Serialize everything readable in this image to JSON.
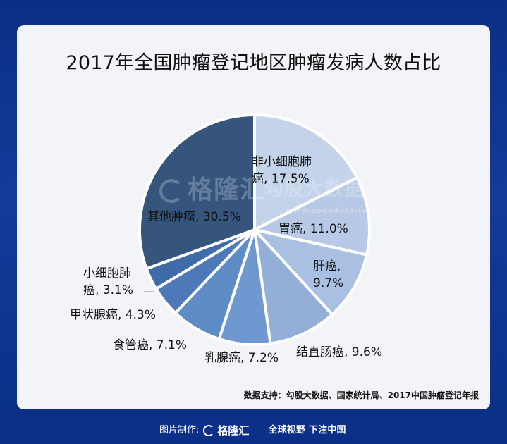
{
  "chart_data": {
    "type": "pie",
    "title": "2017年全国肿瘤登记地区肿瘤发病人数占比",
    "slices": [
      {
        "label_lines": [
          "非小细胞肺",
          "癌, 17.5%"
        ],
        "category": "非小细胞肺癌",
        "value": 17.5,
        "color": "#c3d3ea"
      },
      {
        "label_lines": [
          "胃癌, 11.0%"
        ],
        "category": "胃癌",
        "value": 11.0,
        "color": "#b7c9e6"
      },
      {
        "label_lines": [
          "肝癌,",
          "9.7%"
        ],
        "category": "肝癌",
        "value": 9.7,
        "color": "#a9c0e2"
      },
      {
        "label_lines": [
          "结直肠癌, 9.6%"
        ],
        "category": "结直肠癌",
        "value": 9.6,
        "color": "#93afd8"
      },
      {
        "label_lines": [
          "乳腺癌, 7.2%"
        ],
        "category": "乳腺癌",
        "value": 7.2,
        "color": "#6f97d0"
      },
      {
        "label_lines": [
          "食管癌, 7.1%"
        ],
        "category": "食管癌",
        "value": 7.1,
        "color": "#5e8cc7"
      },
      {
        "label_lines": [
          "甲状腺癌, 4.3%"
        ],
        "category": "甲状腺癌",
        "value": 4.3,
        "color": "#4d79b8"
      },
      {
        "label_lines": [
          "小细胞肺",
          "癌, 3.1%"
        ],
        "category": "小细胞肺癌",
        "value": 3.1,
        "color": "#3f6ca8"
      },
      {
        "label_lines": [
          "其他肿瘤, 30.5%"
        ],
        "category": "其他肿瘤",
        "value": 30.5,
        "color": "#35557d"
      }
    ]
  },
  "source": "数据支持：勾股大数据、国家统计局、2017中国肿瘤登记年报",
  "watermark": {
    "logo_text": "格隆汇",
    "brand_text": "勾股大数据",
    "url_text": "www.gogudata.com"
  },
  "footer": {
    "label": "图片制作:",
    "logo_text": "格隆汇",
    "slogan": "全球视野 下注中国"
  }
}
